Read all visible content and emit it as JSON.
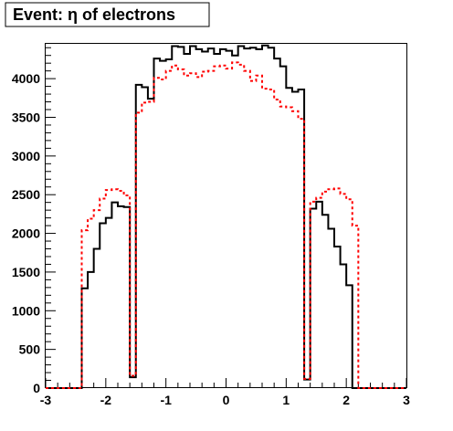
{
  "chart_data": {
    "type": "histogram",
    "title": "Event: η of electrons",
    "xlim": [
      -3,
      3
    ],
    "ylim": [
      0,
      4450
    ],
    "x_ticks": [
      -3,
      -2,
      -1,
      0,
      1,
      2,
      3
    ],
    "y_ticks": [
      0,
      500,
      1000,
      1500,
      2000,
      2500,
      3000,
      3500,
      4000
    ],
    "grid": false,
    "legend": "none",
    "bin_edges": [
      -3.0,
      -2.9,
      -2.8,
      -2.7,
      -2.6,
      -2.5,
      -2.4,
      -2.3,
      -2.2,
      -2.1,
      -2.0,
      -1.9,
      -1.8,
      -1.7,
      -1.6,
      -1.5,
      -1.4,
      -1.3,
      -1.2,
      -1.1,
      -1.0,
      -0.9,
      -0.8,
      -0.7,
      -0.6,
      -0.5,
      -0.4,
      -0.3,
      -0.2,
      -0.1,
      0.0,
      0.1,
      0.2,
      0.3,
      0.4,
      0.5,
      0.6,
      0.7,
      0.8,
      0.9,
      1.0,
      1.1,
      1.2,
      1.3,
      1.4,
      1.5,
      1.6,
      1.7,
      1.8,
      1.9,
      2.0,
      2.1,
      2.2,
      2.3,
      2.4,
      2.5,
      2.6,
      2.7,
      2.8,
      2.9,
      3.0
    ],
    "series": [
      {
        "color": "#000000",
        "line_style": "solid",
        "values": [
          0,
          0,
          0,
          0,
          0,
          0,
          1290,
          1500,
          1800,
          2130,
          2200,
          2400,
          2350,
          2340,
          140,
          3920,
          3890,
          3740,
          4260,
          4230,
          4250,
          4420,
          4410,
          4320,
          4420,
          4380,
          4350,
          4390,
          4320,
          4380,
          4360,
          4300,
          4420,
          4390,
          4400,
          4380,
          4430,
          4400,
          4260,
          4160,
          3880,
          3830,
          3860,
          110,
          2320,
          2410,
          2240,
          2060,
          1830,
          1600,
          1330,
          0,
          0,
          0,
          0,
          0,
          0,
          0,
          0,
          0
        ]
      },
      {
        "color": "#ff0000",
        "line_style": "dotted",
        "values": [
          0,
          0,
          0,
          0,
          0,
          0,
          2040,
          2190,
          2300,
          2450,
          2560,
          2570,
          2550,
          2490,
          160,
          3560,
          3690,
          3700,
          4010,
          3990,
          4100,
          4170,
          4120,
          4040,
          4070,
          4020,
          4090,
          4100,
          4160,
          4170,
          4130,
          4210,
          4180,
          4100,
          3970,
          4040,
          3870,
          3860,
          3730,
          3640,
          3630,
          3580,
          3480,
          120,
          2410,
          2460,
          2540,
          2570,
          2580,
          2510,
          2440,
          2100,
          0,
          0,
          0,
          0,
          0,
          0,
          0,
          0
        ]
      }
    ]
  }
}
